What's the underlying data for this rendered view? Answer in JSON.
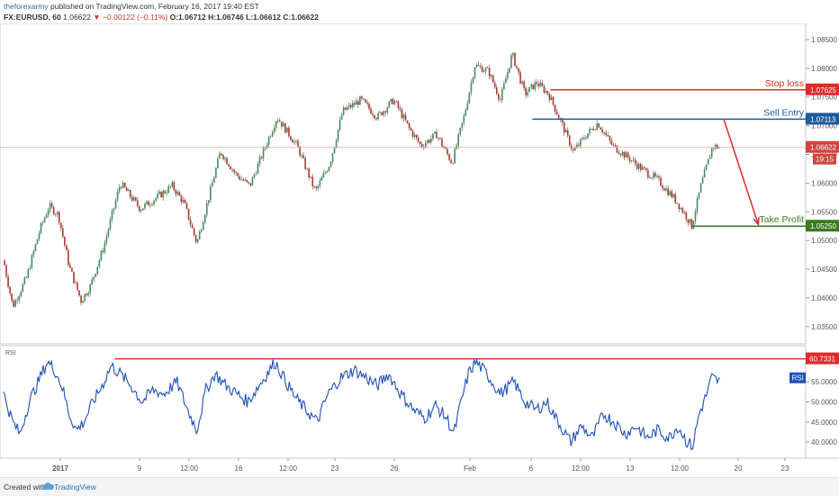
{
  "header": {
    "author": "theforexarmy",
    "published": "published on TradingView.com, February 16, 2017 19:40 EST",
    "symbol_line": "FX:EURUSD, 60",
    "last": "1.06622",
    "change": "−0.00122 (−0.11%)",
    "ohlc": "O:1.06712 H:1.06746 L:1.06612 C:1.06622"
  },
  "footer": {
    "created_with": "Created with",
    "brand": "TradingView"
  },
  "chart_data": {
    "type": "candlestick",
    "symbol": "FX:EURUSD",
    "interval": "60",
    "ylim": [
      1.032,
      1.0875
    ],
    "y_ticks": [
      1.035,
      1.04,
      1.045,
      1.05,
      1.055,
      1.06,
      1.065,
      1.07,
      1.075,
      1.08,
      1.085
    ],
    "y_tick_labels": [
      "1.03500",
      "1.04000",
      "1.04500",
      "1.05000",
      "1.05500",
      "1.06000",
      "1.06500",
      "1.07000",
      "1.07500",
      "1.08000",
      "1.08500"
    ],
    "x_ticks": [
      {
        "label": "2017",
        "bold": true
      },
      {
        "label": "9"
      },
      {
        "label": "12:00"
      },
      {
        "label": "16"
      },
      {
        "label": "12:00"
      },
      {
        "label": "23"
      },
      {
        "label": "26"
      },
      {
        "label": "Feb"
      },
      {
        "label": "6"
      },
      {
        "label": "12:00"
      },
      {
        "label": "13"
      },
      {
        "label": "12:00"
      },
      {
        "label": "20"
      },
      {
        "label": "23"
      }
    ],
    "price_path": [
      {
        "t": 0,
        "p": 1.0465
      },
      {
        "t": 10,
        "p": 1.0385
      },
      {
        "t": 25,
        "p": 1.0435
      },
      {
        "t": 40,
        "p": 1.052
      },
      {
        "t": 50,
        "p": 1.056
      },
      {
        "t": 60,
        "p": 1.0545
      },
      {
        "t": 72,
        "p": 1.0455
      },
      {
        "t": 85,
        "p": 1.0395
      },
      {
        "t": 95,
        "p": 1.042
      },
      {
        "t": 110,
        "p": 1.049
      },
      {
        "t": 128,
        "p": 1.06
      },
      {
        "t": 150,
        "p": 1.0555
      },
      {
        "t": 168,
        "p": 1.0575
      },
      {
        "t": 185,
        "p": 1.0595
      },
      {
        "t": 198,
        "p": 1.0565
      },
      {
        "t": 212,
        "p": 1.0495
      },
      {
        "t": 225,
        "p": 1.0575
      },
      {
        "t": 238,
        "p": 1.0655
      },
      {
        "t": 255,
        "p": 1.0615
      },
      {
        "t": 270,
        "p": 1.0595
      },
      {
        "t": 285,
        "p": 1.0655
      },
      {
        "t": 300,
        "p": 1.0715
      },
      {
        "t": 322,
        "p": 1.0665
      },
      {
        "t": 342,
        "p": 1.0585
      },
      {
        "t": 358,
        "p": 1.0635
      },
      {
        "t": 372,
        "p": 1.0725
      },
      {
        "t": 392,
        "p": 1.0745
      },
      {
        "t": 410,
        "p": 1.0715
      },
      {
        "t": 428,
        "p": 1.0745
      },
      {
        "t": 445,
        "p": 1.0695
      },
      {
        "t": 458,
        "p": 1.0665
      },
      {
        "t": 475,
        "p": 1.0685
      },
      {
        "t": 492,
        "p": 1.0635
      },
      {
        "t": 505,
        "p": 1.0715
      },
      {
        "t": 517,
        "p": 1.0805
      },
      {
        "t": 532,
        "p": 1.0795
      },
      {
        "t": 545,
        "p": 1.0745
      },
      {
        "t": 558,
        "p": 1.0825
      },
      {
        "t": 572,
        "p": 1.0755
      },
      {
        "t": 585,
        "p": 1.0775
      },
      {
        "t": 598,
        "p": 1.0755
      },
      {
        "t": 612,
        "p": 1.0705
      },
      {
        "t": 625,
        "p": 1.0655
      },
      {
        "t": 640,
        "p": 1.0685
      },
      {
        "t": 652,
        "p": 1.0705
      },
      {
        "t": 668,
        "p": 1.0665
      },
      {
        "t": 685,
        "p": 1.0645
      },
      {
        "t": 700,
        "p": 1.0625
      },
      {
        "t": 718,
        "p": 1.0605
      },
      {
        "t": 735,
        "p": 1.0575
      },
      {
        "t": 748,
        "p": 1.0545
      },
      {
        "t": 755,
        "p": 1.0525
      },
      {
        "t": 765,
        "p": 1.0595
      },
      {
        "t": 778,
        "p": 1.0665
      },
      {
        "t": 786,
        "p": 1.0662
      }
    ],
    "last_price": {
      "value": 1.06622,
      "label": "1.06622",
      "countdown": "19:15"
    },
    "levels": [
      {
        "name": "Stop loss",
        "value": 1.07625,
        "label": "1.07625",
        "color": "#e02a2a",
        "t_start": 600
      },
      {
        "name": "Sell Entry",
        "value": 1.07113,
        "label": "1.07113",
        "color": "#1e5aa0",
        "t_start": 580
      },
      {
        "name": "Take Profit",
        "value": 1.0525,
        "label": "1.05250",
        "color": "#3b7a1e",
        "t_start": 755
      }
    ],
    "projection_arrow": {
      "from": {
        "t": 790,
        "p": 1.0712
      },
      "to": {
        "t": 828,
        "p": 1.0528
      },
      "color": "#e02a2a"
    },
    "rsi": {
      "label": "RSI",
      "ylim": [
        36,
        64
      ],
      "ticks": [
        40,
        45,
        50,
        55
      ],
      "tick_labels": [
        "40.0000",
        "45.0000",
        "50.0000",
        "55.0000"
      ],
      "level": {
        "value": 60.7331,
        "label": "60.7331",
        "t_start": 122
      },
      "series_color": "#1e4fba",
      "path": [
        {
          "t": 0,
          "v": 52
        },
        {
          "t": 10,
          "v": 45
        },
        {
          "t": 18,
          "v": 42
        },
        {
          "t": 28,
          "v": 50
        },
        {
          "t": 38,
          "v": 55
        },
        {
          "t": 48,
          "v": 60
        },
        {
          "t": 56,
          "v": 58
        },
        {
          "t": 64,
          "v": 54
        },
        {
          "t": 72,
          "v": 47
        },
        {
          "t": 80,
          "v": 43
        },
        {
          "t": 88,
          "v": 45
        },
        {
          "t": 98,
          "v": 50
        },
        {
          "t": 108,
          "v": 54
        },
        {
          "t": 118,
          "v": 59
        },
        {
          "t": 128,
          "v": 57
        },
        {
          "t": 140,
          "v": 54
        },
        {
          "t": 152,
          "v": 50
        },
        {
          "t": 164,
          "v": 53
        },
        {
          "t": 176,
          "v": 52
        },
        {
          "t": 190,
          "v": 55
        },
        {
          "t": 202,
          "v": 48
        },
        {
          "t": 212,
          "v": 43
        },
        {
          "t": 222,
          "v": 53
        },
        {
          "t": 232,
          "v": 57
        },
        {
          "t": 244,
          "v": 54
        },
        {
          "t": 256,
          "v": 52
        },
        {
          "t": 268,
          "v": 50
        },
        {
          "t": 280,
          "v": 54
        },
        {
          "t": 298,
          "v": 60
        },
        {
          "t": 310,
          "v": 55
        },
        {
          "t": 320,
          "v": 51
        },
        {
          "t": 332,
          "v": 48
        },
        {
          "t": 344,
          "v": 45
        },
        {
          "t": 356,
          "v": 52
        },
        {
          "t": 370,
          "v": 56
        },
        {
          "t": 385,
          "v": 58
        },
        {
          "t": 398,
          "v": 56
        },
        {
          "t": 410,
          "v": 54
        },
        {
          "t": 422,
          "v": 57
        },
        {
          "t": 436,
          "v": 52
        },
        {
          "t": 450,
          "v": 48
        },
        {
          "t": 462,
          "v": 46
        },
        {
          "t": 474,
          "v": 49
        },
        {
          "t": 486,
          "v": 46
        },
        {
          "t": 494,
          "v": 42
        },
        {
          "t": 502,
          "v": 50
        },
        {
          "t": 510,
          "v": 57
        },
        {
          "t": 518,
          "v": 60
        },
        {
          "t": 530,
          "v": 57
        },
        {
          "t": 545,
          "v": 52
        },
        {
          "t": 560,
          "v": 55
        },
        {
          "t": 572,
          "v": 50
        },
        {
          "t": 584,
          "v": 48
        },
        {
          "t": 596,
          "v": 50
        },
        {
          "t": 606,
          "v": 46
        },
        {
          "t": 614,
          "v": 43
        },
        {
          "t": 622,
          "v": 40
        },
        {
          "t": 634,
          "v": 44
        },
        {
          "t": 646,
          "v": 41
        },
        {
          "t": 658,
          "v": 47
        },
        {
          "t": 670,
          "v": 45
        },
        {
          "t": 682,
          "v": 42
        },
        {
          "t": 694,
          "v": 44
        },
        {
          "t": 706,
          "v": 41
        },
        {
          "t": 718,
          "v": 43
        },
        {
          "t": 730,
          "v": 41
        },
        {
          "t": 740,
          "v": 44
        },
        {
          "t": 750,
          "v": 40
        },
        {
          "t": 756,
          "v": 39
        },
        {
          "t": 763,
          "v": 47
        },
        {
          "t": 770,
          "v": 51
        },
        {
          "t": 777,
          "v": 56
        },
        {
          "t": 786,
          "v": 55
        }
      ]
    }
  }
}
